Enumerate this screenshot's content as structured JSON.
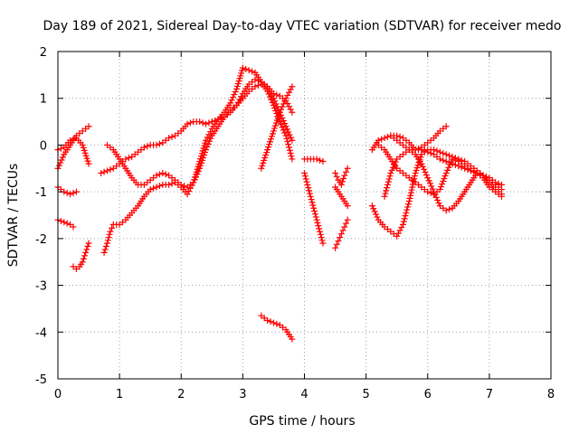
{
  "chart_data": {
    "type": "scatter",
    "title": "Day 189 of 2021, Sidereal Day-to-day VTEC variation (SDTVAR) for receiver medo",
    "xlabel": "GPS time / hours",
    "ylabel": "SDTVAR / TECUs",
    "xlim": [
      0,
      8
    ],
    "ylim": [
      -5,
      2
    ],
    "xticks": [
      "0",
      "1",
      "2",
      "3",
      "4",
      "5",
      "6",
      "7",
      "8"
    ],
    "yticks": [
      "-5",
      "-4",
      "-3",
      "-2",
      "-1",
      "0",
      "1",
      "2"
    ],
    "grid": true,
    "marker": "+",
    "color": "#ff0000",
    "series": [
      {
        "x": [
          0.0,
          0.1,
          0.2,
          0.3,
          0.4,
          0.5
        ],
        "y": [
          -0.5,
          -0.2,
          0.0,
          0.2,
          0.3,
          0.4
        ]
      },
      {
        "x": [
          0.0,
          0.1,
          0.2,
          0.3,
          0.4,
          0.5
        ],
        "y": [
          -0.1,
          -0.05,
          0.1,
          0.15,
          0.0,
          -0.4
        ]
      },
      {
        "x": [
          0.0,
          0.1,
          0.2,
          0.3
        ],
        "y": [
          -0.9,
          -1.0,
          -1.05,
          -1.0
        ]
      },
      {
        "x": [
          0.0,
          0.1,
          0.2,
          0.25
        ],
        "y": [
          -1.6,
          -1.65,
          -1.7,
          -1.75
        ]
      },
      {
        "x": [
          0.25,
          0.3,
          0.35,
          0.4,
          0.45,
          0.5
        ],
        "y": [
          -2.6,
          -2.65,
          -2.6,
          -2.5,
          -2.3,
          -2.1
        ]
      },
      {
        "x": [
          0.75,
          0.8,
          0.85,
          0.9,
          1.0,
          1.1,
          1.2,
          1.3,
          1.4,
          1.5,
          1.6,
          1.7,
          1.8,
          1.9,
          2.0,
          2.1,
          2.2,
          2.3,
          2.4,
          2.5,
          2.6,
          2.7,
          2.8,
          2.9,
          3.0,
          3.1,
          3.2,
          3.3,
          3.4,
          3.5,
          3.6,
          3.7,
          3.8
        ],
        "y": [
          -2.3,
          -2.1,
          -1.85,
          -1.7,
          -1.7,
          -1.6,
          -1.45,
          -1.3,
          -1.1,
          -0.95,
          -0.9,
          -0.85,
          -0.85,
          -0.8,
          -0.9,
          -1.05,
          -0.8,
          -0.35,
          0.1,
          0.35,
          0.55,
          0.7,
          0.9,
          1.2,
          1.65,
          1.6,
          1.55,
          1.35,
          1.15,
          0.85,
          0.5,
          0.2,
          -0.3
        ]
      },
      {
        "x": [
          0.7,
          0.8,
          0.9,
          1.0,
          1.1,
          1.2,
          1.3,
          1.4,
          1.5,
          1.6,
          1.7,
          1.8,
          1.9,
          2.0,
          2.1,
          2.2,
          2.3,
          2.4,
          2.5,
          2.6,
          2.7,
          2.8,
          2.9,
          3.0,
          3.1,
          3.2,
          3.3,
          3.4,
          3.5,
          3.6,
          3.7,
          3.8
        ],
        "y": [
          -0.6,
          -0.55,
          -0.5,
          -0.4,
          -0.3,
          -0.25,
          -0.15,
          -0.05,
          0.0,
          0.0,
          0.05,
          0.15,
          0.2,
          0.3,
          0.45,
          0.5,
          0.5,
          0.45,
          0.5,
          0.55,
          0.6,
          0.7,
          0.85,
          1.1,
          1.3,
          1.4,
          1.35,
          1.25,
          1.1,
          1.05,
          0.95,
          0.7
        ]
      },
      {
        "x": [
          0.8,
          0.9,
          1.0,
          1.1,
          1.2,
          1.3,
          1.4,
          1.5,
          1.6,
          1.7,
          1.8,
          1.9,
          2.0,
          2.1,
          2.2,
          2.3,
          2.4,
          2.5,
          2.6,
          2.7,
          2.8,
          2.9,
          3.0,
          3.1,
          3.2,
          3.3,
          3.35,
          3.4,
          3.5,
          3.6,
          3.7,
          3.8
        ],
        "y": [
          0.0,
          -0.1,
          -0.3,
          -0.5,
          -0.7,
          -0.85,
          -0.85,
          -0.75,
          -0.65,
          -0.6,
          -0.65,
          -0.75,
          -0.85,
          -0.9,
          -0.8,
          -0.5,
          -0.1,
          0.2,
          0.4,
          0.6,
          0.75,
          0.85,
          1.0,
          1.15,
          1.25,
          1.3,
          1.3,
          1.2,
          1.0,
          0.7,
          0.4,
          0.1
        ]
      },
      {
        "x": [
          3.3,
          3.4,
          3.5,
          3.6,
          3.7,
          3.8
        ],
        "y": [
          -0.5,
          -0.1,
          0.3,
          0.7,
          1.0,
          1.25
        ]
      },
      {
        "x": [
          3.3,
          3.4,
          3.5,
          3.6,
          3.7,
          3.8
        ],
        "y": [
          -3.65,
          -3.75,
          -3.8,
          -3.85,
          -3.95,
          -4.15
        ]
      },
      {
        "x": [
          4.0,
          4.1,
          4.2,
          4.3
        ],
        "y": [
          -0.3,
          -0.3,
          -0.3,
          -0.35
        ]
      },
      {
        "x": [
          4.0,
          4.05,
          4.1,
          4.15,
          4.2,
          4.25,
          4.3
        ],
        "y": [
          -0.6,
          -0.85,
          -1.1,
          -1.35,
          -1.6,
          -1.85,
          -2.1
        ]
      },
      {
        "x": [
          4.5,
          4.55,
          4.6,
          4.65,
          4.7
        ],
        "y": [
          -0.6,
          -0.75,
          -0.85,
          -0.65,
          -0.5
        ]
      },
      {
        "x": [
          4.5,
          4.55,
          4.6,
          4.65,
          4.7
        ],
        "y": [
          -0.9,
          -1.0,
          -1.1,
          -1.2,
          -1.3
        ]
      },
      {
        "x": [
          4.5,
          4.55,
          4.6,
          4.65,
          4.7
        ],
        "y": [
          -2.2,
          -2.05,
          -1.9,
          -1.75,
          -1.6
        ]
      },
      {
        "x": [
          5.1,
          5.2,
          5.3,
          5.4,
          5.5,
          5.6,
          5.7,
          5.8,
          5.9,
          6.0,
          6.1,
          6.2,
          6.3
        ],
        "y": [
          -0.1,
          0.1,
          0.15,
          0.2,
          0.2,
          0.15,
          0.05,
          -0.1,
          -0.05,
          0.05,
          0.15,
          0.3,
          0.4
        ]
      },
      {
        "x": [
          5.1,
          5.2,
          5.3,
          5.4,
          5.5,
          5.6,
          5.7,
          5.8,
          5.9,
          6.0,
          6.1,
          6.2,
          6.3,
          6.4,
          6.5,
          6.6,
          6.7,
          6.8,
          6.9,
          7.0,
          7.1,
          7.2
        ],
        "y": [
          -1.3,
          -1.6,
          -1.75,
          -1.85,
          -1.95,
          -1.7,
          -1.2,
          -0.6,
          -0.2,
          -0.1,
          -0.1,
          -0.15,
          -0.2,
          -0.25,
          -0.3,
          -0.35,
          -0.45,
          -0.55,
          -0.65,
          -0.75,
          -0.85,
          -0.95
        ]
      },
      {
        "x": [
          5.2,
          5.3,
          5.4,
          5.5,
          5.6,
          5.7,
          5.8,
          5.9,
          6.0,
          6.1,
          6.2,
          6.3,
          6.4,
          6.5,
          6.6,
          6.7,
          6.8,
          6.9,
          7.0,
          7.1,
          7.2
        ],
        "y": [
          0.0,
          -0.1,
          -0.3,
          -0.5,
          -0.6,
          -0.7,
          -0.8,
          -0.9,
          -1.0,
          -1.05,
          -0.95,
          -0.6,
          -0.3,
          -0.35,
          -0.45,
          -0.55,
          -0.6,
          -0.65,
          -0.8,
          -0.95,
          -1.05
        ]
      },
      {
        "x": [
          5.3,
          5.4,
          5.5,
          5.6,
          5.7,
          5.8,
          5.9,
          6.0,
          6.1,
          6.2,
          6.3,
          6.4,
          6.5,
          6.6,
          6.7,
          6.8,
          6.9,
          7.0,
          7.1,
          7.2
        ],
        "y": [
          -1.1,
          -0.6,
          -0.3,
          -0.2,
          -0.1,
          -0.1,
          -0.1,
          -0.15,
          -0.2,
          -0.3,
          -0.35,
          -0.4,
          -0.45,
          -0.5,
          -0.55,
          -0.6,
          -0.65,
          -0.7,
          -0.8,
          -0.85
        ]
      },
      {
        "x": [
          5.4,
          5.5,
          5.6,
          5.7,
          5.8,
          5.9,
          6.0,
          6.1,
          6.2,
          6.3,
          6.4,
          6.5,
          6.6,
          6.7,
          6.8,
          6.9,
          7.0,
          7.1,
          7.2
        ],
        "y": [
          0.2,
          0.1,
          0.0,
          -0.1,
          -0.2,
          -0.4,
          -0.7,
          -1.0,
          -1.3,
          -1.4,
          -1.35,
          -1.2,
          -1.0,
          -0.8,
          -0.6,
          -0.7,
          -0.9,
          -1.0,
          -1.1
        ]
      }
    ]
  }
}
